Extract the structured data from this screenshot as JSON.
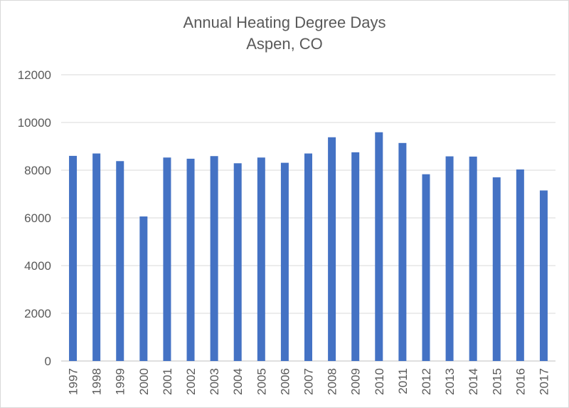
{
  "chart_data": {
    "type": "bar",
    "title": "Annual Heating Degree Days",
    "subtitle": "Aspen, CO",
    "xlabel": "",
    "ylabel": "",
    "categories": [
      "1997",
      "1998",
      "1999",
      "2000",
      "2001",
      "2002",
      "2003",
      "2004",
      "2005",
      "2006",
      "2007",
      "2008",
      "2009",
      "2010",
      "2011",
      "2012",
      "2013",
      "2014",
      "2015",
      "2016",
      "2017"
    ],
    "values": [
      8600,
      8700,
      8380,
      6060,
      8530,
      8480,
      8590,
      8290,
      8530,
      8310,
      8700,
      9380,
      8750,
      9590,
      9140,
      7830,
      8580,
      8570,
      7700,
      8030,
      7150
    ],
    "ylim": [
      0,
      12000
    ],
    "yticks": [
      0,
      2000,
      4000,
      6000,
      8000,
      10000,
      12000
    ],
    "grid": true,
    "legend": "none",
    "colors": {
      "bar": "#4472c4",
      "grid": "#d9d9d9",
      "text": "#595959"
    }
  }
}
